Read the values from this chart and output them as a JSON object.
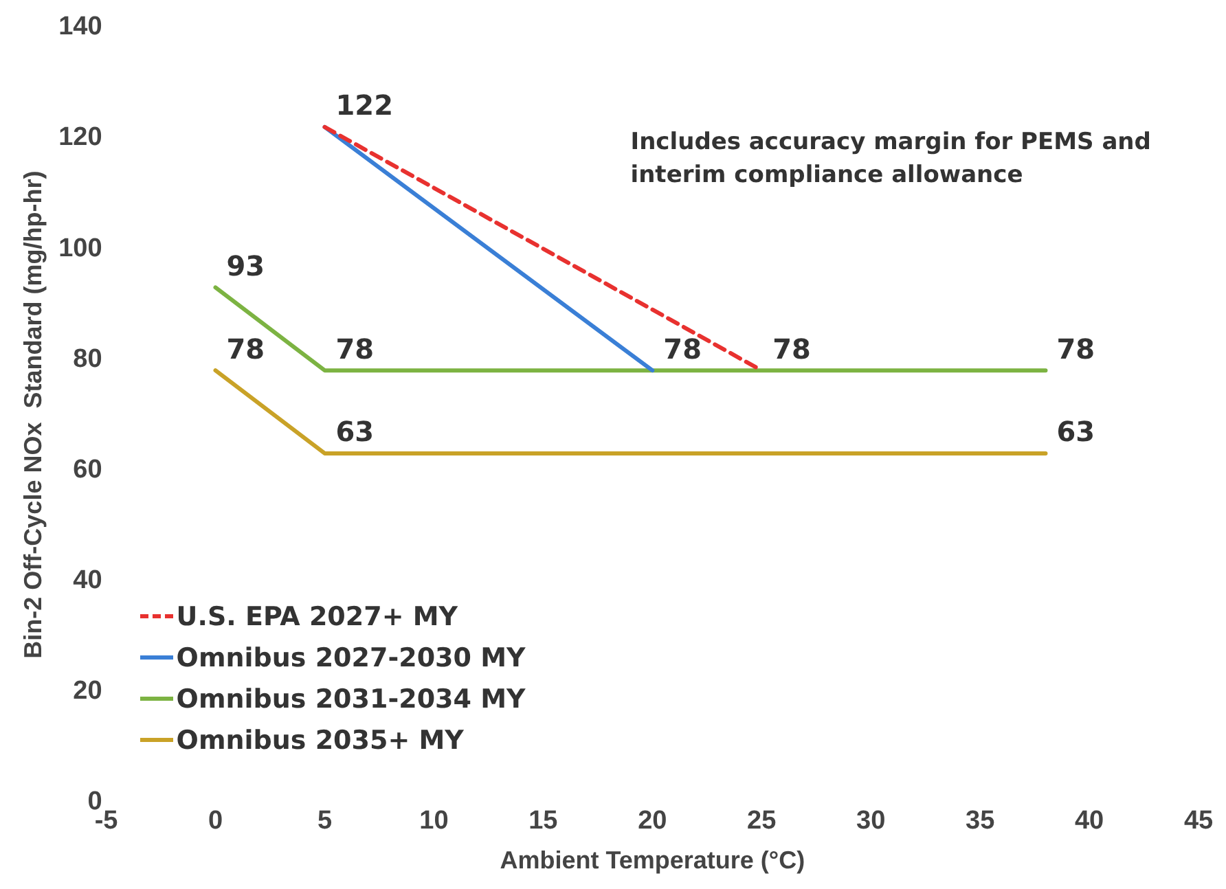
{
  "chart_data": {
    "type": "line",
    "xlabel": "Ambient Temperature (°C)",
    "ylabel": "Bin-2 Off-Cycle NOx  Standard (mg/hp-hr)",
    "xlim": [
      -5,
      45
    ],
    "xticks": [
      -5,
      0,
      5,
      10,
      15,
      20,
      25,
      30,
      35,
      40,
      45
    ],
    "ylim": [
      0,
      140
    ],
    "yticks": [
      0,
      20,
      40,
      60,
      80,
      100,
      120,
      140
    ],
    "grid": false,
    "legend": "bottom left",
    "marker": "none",
    "annotations": [
      "Includes accuracy margin for PEMS and interim compliance allowance"
    ],
    "series": [
      {
        "name": "U.S. EPA 2027+ MY",
        "color": "#e8312f",
        "line_style": "dashed",
        "x": [
          5,
          25
        ],
        "values": [
          122,
          78
        ],
        "value_labels": [
          null,
          "78"
        ]
      },
      {
        "name": "Omnibus 2027-2030 MY",
        "color": "#3a7fd6",
        "line_style": "solid",
        "x": [
          5,
          20
        ],
        "values": [
          122,
          78
        ],
        "value_labels": [
          "122",
          "78"
        ]
      },
      {
        "name": "Omnibus 2031-2034 MY",
        "color": "#7cb342",
        "line_style": "solid",
        "x": [
          0,
          5,
          38
        ],
        "values": [
          93,
          78,
          78
        ],
        "value_labels": [
          "93",
          "78",
          "78"
        ]
      },
      {
        "name": "Omnibus 2035+ MY",
        "color": "#c9a227",
        "line_style": "solid",
        "x": [
          0,
          5,
          38
        ],
        "values": [
          78,
          63,
          63
        ],
        "value_labels": [
          "78",
          "63",
          "63"
        ]
      }
    ]
  }
}
